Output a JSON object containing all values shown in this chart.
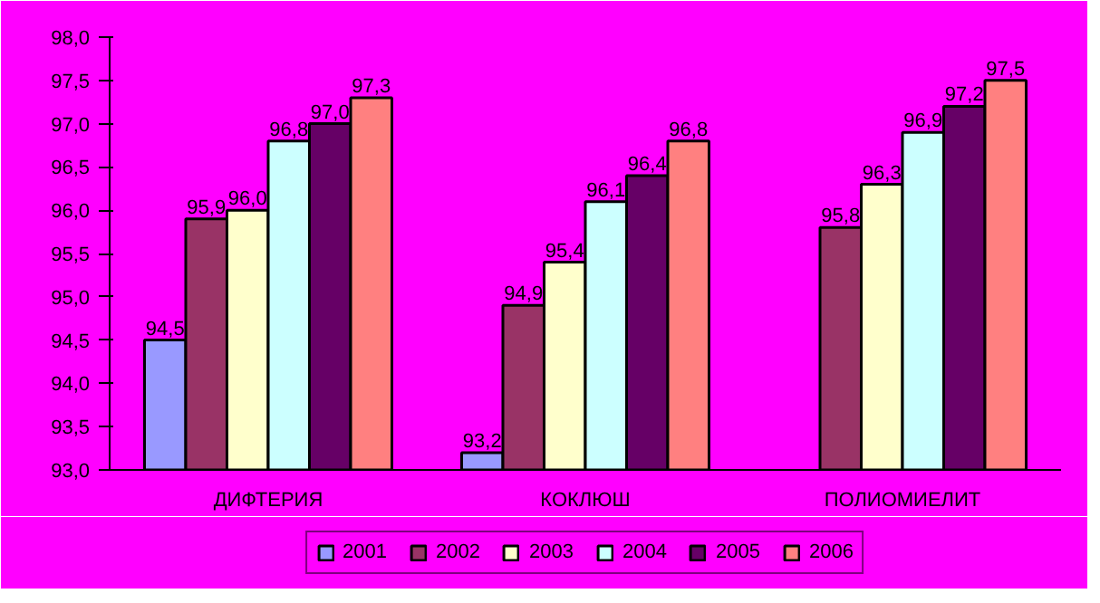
{
  "chart_data": {
    "type": "bar",
    "categories": [
      "ДИФТЕРИЯ",
      "КОКЛЮШ",
      "ПОЛИОМИЕЛИТ"
    ],
    "series": [
      {
        "name": "2001",
        "color": "#9999ff",
        "values": [
          94.5,
          93.2,
          null
        ],
        "value_labels": [
          "94,5",
          "93,2",
          null
        ]
      },
      {
        "name": "2002",
        "color": "#993366",
        "values": [
          95.9,
          94.9,
          95.8
        ],
        "value_labels": [
          "95,9",
          "94,9",
          "95,8"
        ]
      },
      {
        "name": "2003",
        "color": "#ffffcc",
        "values": [
          96.0,
          95.4,
          96.3
        ],
        "value_labels": [
          "96,0",
          "95,4",
          "96,3"
        ]
      },
      {
        "name": "2004",
        "color": "#ccffff",
        "values": [
          96.8,
          96.1,
          96.9
        ],
        "value_labels": [
          "96,8",
          "96,1",
          "96,9"
        ]
      },
      {
        "name": "2005",
        "color": "#660066",
        "values": [
          97.0,
          96.4,
          97.2
        ],
        "value_labels": [
          "97,0",
          "96,4",
          "97,2"
        ]
      },
      {
        "name": "2006",
        "color": "#ff8080",
        "values": [
          97.3,
          96.8,
          97.5
        ],
        "value_labels": [
          "97,3",
          "96,8",
          "97,5"
        ]
      }
    ],
    "ylim": [
      93,
      98
    ],
    "yticks": [
      {
        "value": 93,
        "label": "93,0"
      },
      {
        "value": 93.5,
        "label": "93,5"
      },
      {
        "value": 94,
        "label": "94,0"
      },
      {
        "value": 94.5,
        "label": "94,5"
      },
      {
        "value": 95,
        "label": "95,0"
      },
      {
        "value": 95.5,
        "label": "95,5"
      },
      {
        "value": 96,
        "label": "96,0"
      },
      {
        "value": 96.5,
        "label": "96,5"
      },
      {
        "value": 97,
        "label": "97,0"
      },
      {
        "value": 97.5,
        "label": "97,5"
      },
      {
        "value": 98,
        "label": "98,0"
      }
    ],
    "grid": false,
    "legend": "bottom"
  }
}
